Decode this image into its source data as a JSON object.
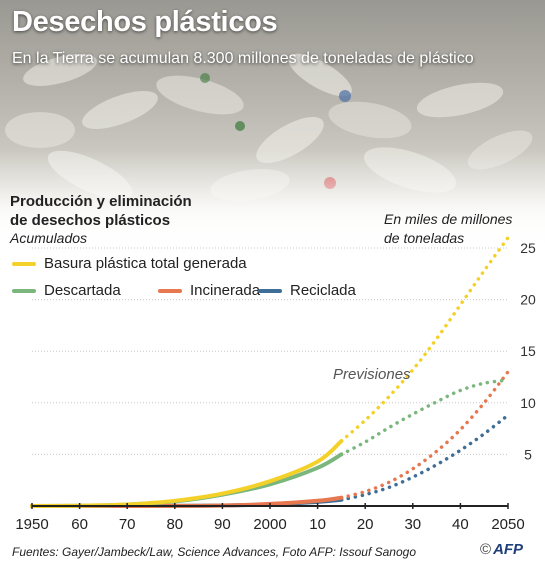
{
  "header": {
    "title": "Desechos plásticos",
    "subtitle": "En la Tierra se acumulan 8.300 millones de toneladas de plástico"
  },
  "chart_data": {
    "type": "line",
    "title": "Producción y eliminación de desechos plásticos",
    "title_lines": [
      "Producción y eliminación",
      "de desechos plásticos"
    ],
    "subtitle": "Acumulados",
    "ylabel": "En miles de millones de toneladas",
    "ylabel_lines": [
      "En miles de millones",
      "de toneladas"
    ],
    "xlim": [
      1950,
      2050
    ],
    "ylim": [
      0,
      25
    ],
    "x_ticks": [
      1950,
      1960,
      1970,
      1980,
      1990,
      2000,
      2010,
      2020,
      2030,
      2040,
      2050
    ],
    "x_tick_labels": [
      "1950",
      "60",
      "70",
      "80",
      "90",
      "2000",
      "10",
      "20",
      "30",
      "40",
      "2050"
    ],
    "y_ticks": [
      5,
      10,
      15,
      20,
      25
    ],
    "grid": "horizontal",
    "annotation": "Previsiones",
    "projection_start": 2015,
    "series": [
      {
        "name": "Basura plástica total generada",
        "color": "#f3d128",
        "x": [
          1950,
          1960,
          1970,
          1980,
          1990,
          2000,
          2010,
          2015,
          2020,
          2025,
          2030,
          2035,
          2040,
          2045,
          2050
        ],
        "values": [
          0,
          0.03,
          0.15,
          0.5,
          1.2,
          2.4,
          4.3,
          6.3,
          8.3,
          10.6,
          13.2,
          16.2,
          19.5,
          22.8,
          26.0
        ]
      },
      {
        "name": "Descartada",
        "color": "#7bb77c",
        "x": [
          1950,
          1960,
          1970,
          1980,
          1990,
          2000,
          2010,
          2015,
          2020,
          2025,
          2030,
          2035,
          2040,
          2045,
          2050
        ],
        "values": [
          0,
          0.03,
          0.14,
          0.45,
          1.1,
          2.1,
          3.7,
          5.0,
          6.2,
          7.6,
          8.9,
          10.1,
          11.2,
          11.9,
          12.2
        ]
      },
      {
        "name": "Incinerada",
        "color": "#e6774f",
        "x": [
          1950,
          1960,
          1970,
          1980,
          1990,
          2000,
          2010,
          2015,
          2020,
          2025,
          2030,
          2035,
          2040,
          2045,
          2050
        ],
        "values": [
          0,
          0,
          0,
          0.01,
          0.05,
          0.2,
          0.5,
          0.8,
          1.4,
          2.3,
          3.6,
          5.3,
          7.4,
          10.0,
          13.0
        ]
      },
      {
        "name": "Reciclada",
        "color": "#3f6f98",
        "x": [
          1950,
          1960,
          1970,
          1980,
          1990,
          2000,
          2010,
          2015,
          2020,
          2025,
          2030,
          2035,
          2040,
          2045,
          2050
        ],
        "values": [
          0,
          0,
          0,
          0.01,
          0.05,
          0.15,
          0.4,
          0.6,
          1.1,
          1.8,
          2.8,
          4.0,
          5.4,
          7.0,
          8.8
        ]
      }
    ]
  },
  "legend": {
    "total": "Basura plástica total generada",
    "descartada": "Descartada",
    "incinerada": "Incinerada",
    "reciclada": "Reciclada"
  },
  "footer": {
    "sources": "Fuentes: Gayer/Jambeck/Law, Science Advances, Foto AFP: Issouf Sanogo",
    "copyright": "©",
    "brand": "AFP"
  }
}
